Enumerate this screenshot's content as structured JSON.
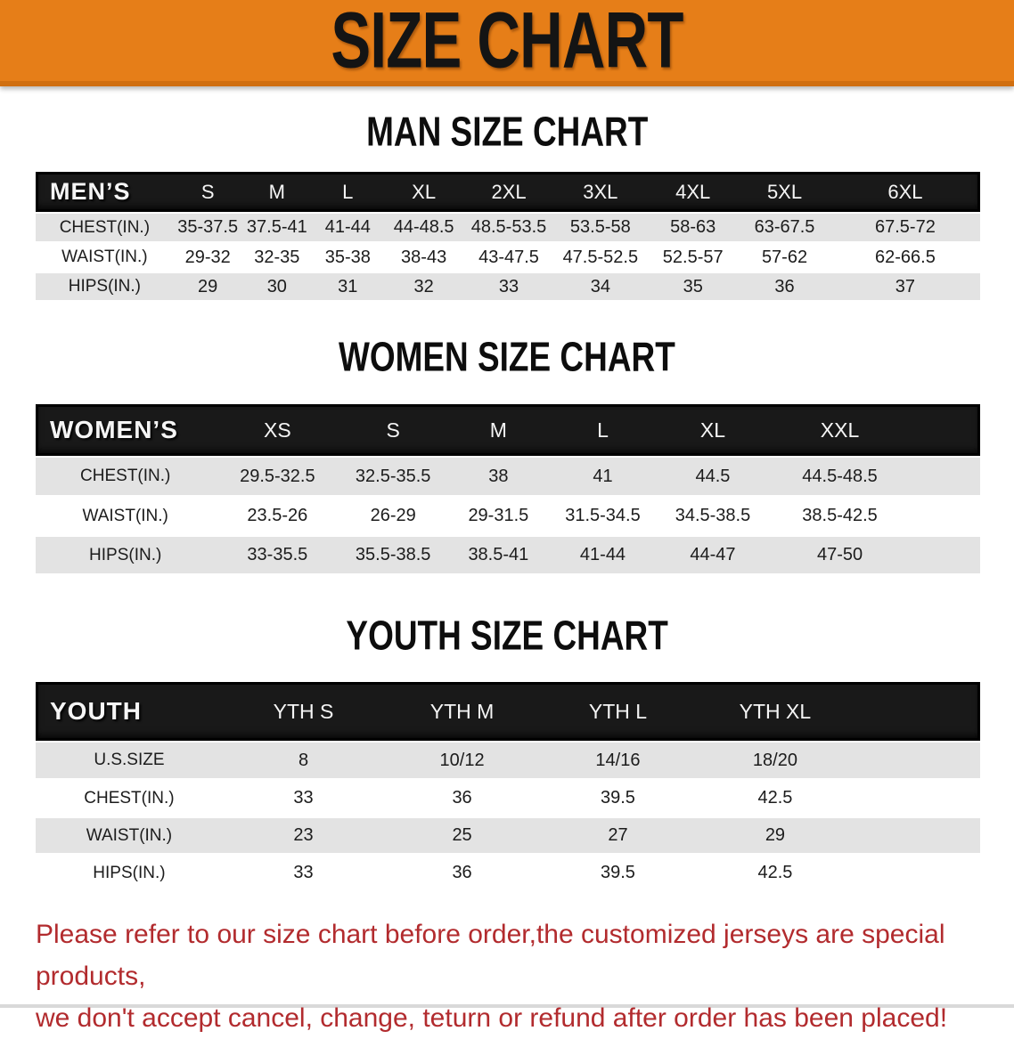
{
  "banner": {
    "title": "SIZE CHART",
    "bg_color": "#E67E18",
    "text_color": "#141414"
  },
  "sections": {
    "men": {
      "heading": "MAN SIZE CHART",
      "header_label": "MEN’S",
      "columns": [
        "S",
        "M",
        "L",
        "XL",
        "2XL",
        "3XL",
        "4XL",
        "5XL",
        "6XL"
      ],
      "rows": [
        {
          "label": "CHEST(IN.)",
          "values": [
            "35-37.5",
            "37.5-41",
            "41-44",
            "44-48.5",
            "48.5-53.5",
            "53.5-58",
            "58-63",
            "63-67.5",
            "67.5-72"
          ]
        },
        {
          "label": "WAIST(IN.)",
          "values": [
            "29-32",
            "32-35",
            "35-38",
            "38-43",
            "43-47.5",
            "47.5-52.5",
            "52.5-57",
            "57-62",
            "62-66.5"
          ]
        },
        {
          "label": "HIPS(IN.)",
          "values": [
            "29",
            "30",
            "31",
            "32",
            "33",
            "34",
            "35",
            "36",
            "37"
          ]
        }
      ]
    },
    "women": {
      "heading": "WOMEN SIZE CHART",
      "header_label": "WOMEN’S",
      "columns": [
        "XS",
        "S",
        "M",
        "L",
        "XL",
        "XXL"
      ],
      "rows": [
        {
          "label": "CHEST(IN.)",
          "values": [
            "29.5-32.5",
            "32.5-35.5",
            "38",
            "41",
            "44.5",
            "44.5-48.5"
          ]
        },
        {
          "label": "WAIST(IN.)",
          "values": [
            "23.5-26",
            "26-29",
            "29-31.5",
            "31.5-34.5",
            "34.5-38.5",
            "38.5-42.5"
          ]
        },
        {
          "label": "HIPS(IN.)",
          "values": [
            "33-35.5",
            "35.5-38.5",
            "38.5-41",
            "41-44",
            "44-47",
            "47-50"
          ]
        }
      ]
    },
    "youth": {
      "heading": "YOUTH SIZE CHART",
      "header_label": "YOUTH",
      "columns": [
        "YTH S",
        "YTH M",
        "YTH L",
        "YTH XL"
      ],
      "rows": [
        {
          "label": "U.S.SIZE",
          "values": [
            "8",
            "10/12",
            "14/16",
            "18/20"
          ]
        },
        {
          "label": "CHEST(IN.)",
          "values": [
            "33",
            "36",
            "39.5",
            "42.5"
          ]
        },
        {
          "label": "WAIST(IN.)",
          "values": [
            "23",
            "25",
            "27",
            "29"
          ]
        },
        {
          "label": "HIPS(IN.)",
          "values": [
            "33",
            "36",
            "39.5",
            "42.5"
          ]
        }
      ]
    }
  },
  "footer": {
    "line1": "Please refer to our size chart before order,the customized jerseys are special products,",
    "line2": "we don't accept cancel, change, teturn or refund after order has been placed!",
    "text_color": "#B22B2E"
  },
  "colors": {
    "banner_orange": "#E67E18",
    "banner_border": "#D06F10",
    "table_header_black": "#191919",
    "row_gray": "#E3E3E3",
    "row_white": "#FFFFFF",
    "disclaimer_red": "#B22B2E"
  }
}
